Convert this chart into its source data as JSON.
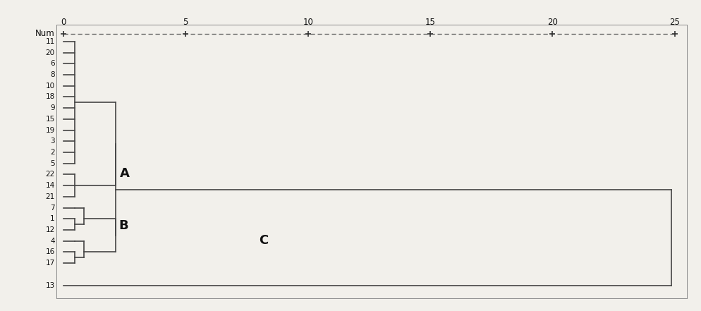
{
  "labels": [
    "11",
    "20",
    "6",
    "8",
    "10",
    "18",
    "9",
    "15",
    "19",
    "3",
    "2",
    "5",
    "22",
    "14",
    "21",
    "7",
    "1",
    "12",
    "4",
    "16",
    "17",
    "",
    "13"
  ],
  "x_ticks": [
    0,
    5,
    10,
    15,
    20,
    25
  ],
  "x_min": 0,
  "x_max": 25,
  "background_color": "#f2f0eb",
  "line_color": "#444444",
  "text_color": "#111111",
  "label_A": "A",
  "label_B": "B",
  "label_C": "C"
}
